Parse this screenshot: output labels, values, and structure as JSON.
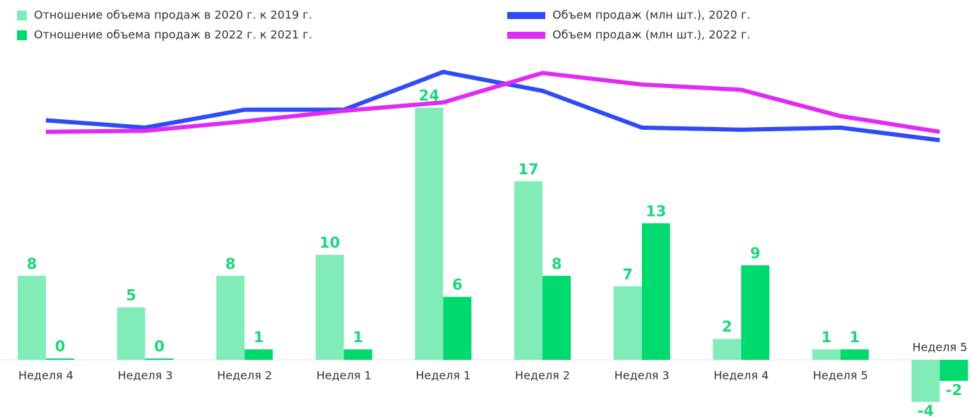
{
  "chart_data": {
    "type": "bar",
    "categories": [
      "Неделя 4",
      "Неделя 3",
      "Неделя 2",
      "Неделя 1",
      "Неделя 1",
      "Неделя 2",
      "Неделя 3",
      "Неделя 4",
      "Неделя 5",
      "Неделя 5"
    ],
    "ylim": [
      -5,
      28
    ],
    "series": [
      {
        "name": "Отношение объема продаж в 2020 г. к 2019 г.",
        "color": "#82ecb9",
        "kind": "bar",
        "values": [
          8,
          5,
          8,
          10,
          24,
          17,
          7,
          2,
          1,
          -4
        ]
      },
      {
        "name": "Отношение объема продаж в 2022 г. к 2021 г.",
        "color": "#00d96e",
        "kind": "bar",
        "values": [
          0,
          0,
          1,
          1,
          6,
          8,
          13,
          9,
          1,
          -2
        ]
      },
      {
        "name": "Объем продаж (млн шт.), 2020 г.",
        "color": "#2e4bf5",
        "kind": "line",
        "values": [
          22.8,
          22.1,
          23.8,
          23.8,
          27.4,
          25.6,
          22.1,
          21.9,
          22.1,
          20.9
        ]
      },
      {
        "name": "Объем продаж (млн шт.), 2022 г.",
        "color": "#e02cf2",
        "kind": "line",
        "values": [
          21.7,
          21.8,
          22.7,
          23.7,
          24.5,
          27.3,
          26.2,
          25.7,
          23.2,
          21.7
        ]
      }
    ]
  }
}
